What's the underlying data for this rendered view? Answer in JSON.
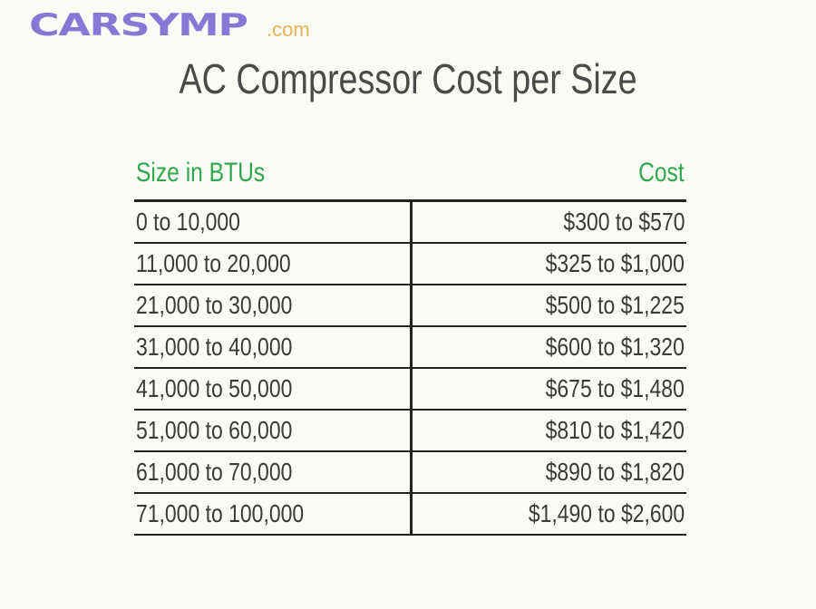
{
  "logo": {
    "text": "CARSYMP",
    ".com": ".com",
    "accent": "#8878d6"
  },
  "title": "AC Compressor Cost per Size",
  "chart_data": {
    "type": "table",
    "title": "AC Compressor Cost per Size",
    "columns": [
      "Size in BTUs",
      "Cost"
    ],
    "rows": [
      [
        "0 to 10,000",
        "$300 to $570"
      ],
      [
        "11,000 to 20,000",
        "$325 to $1,000"
      ],
      [
        "21,000 to 30,000",
        "$500 to $1,225"
      ],
      [
        "31,000 to 40,000",
        "$600 to $1,320"
      ],
      [
        "41,000 to 50,000",
        "$675 to $1,480"
      ],
      [
        "51,000 to 60,000",
        "$810 to $1,420"
      ],
      [
        "61,000 to 70,000",
        "$890 to $1,820"
      ],
      [
        "71,000 to 100,000",
        "$1,490 to $2,600"
      ]
    ],
    "header_color": "#2fa84f"
  }
}
